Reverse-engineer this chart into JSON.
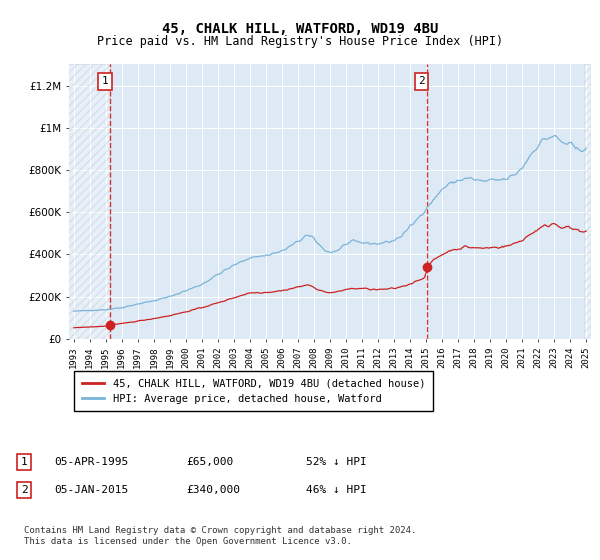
{
  "title": "45, CHALK HILL, WATFORD, WD19 4BU",
  "subtitle": "Price paid vs. HM Land Registry's House Price Index (HPI)",
  "ylim": [
    0,
    1300000
  ],
  "yticks": [
    0,
    200000,
    400000,
    600000,
    800000,
    1000000,
    1200000
  ],
  "hpi_color": "#7ab4d8",
  "price_color": "#cc2222",
  "marker_color": "#cc2222",
  "vline_color": "#cc2222",
  "bg_color": "#ddeaf5",
  "grid_color": "#ffffff",
  "box_edge_color": "#cc2222",
  "box_face_color": "#ffffff",
  "box_text_color": "#000000",
  "legend_label_price": "45, CHALK HILL, WATFORD, WD19 4BU (detached house)",
  "legend_label_hpi": "HPI: Average price, detached house, Watford",
  "note1_date": "05-APR-1995",
  "note1_price": "£65,000",
  "note1_hpi": "52% ↓ HPI",
  "note2_date": "05-JAN-2015",
  "note2_price": "£340,000",
  "note2_hpi": "46% ↓ HPI",
  "footer": "Contains HM Land Registry data © Crown copyright and database right 2024.\nThis data is licensed under the Open Government Licence v3.0.",
  "x_start_year": 1993,
  "x_end_year": 2025,
  "purchase1_year": 1995.25,
  "purchase1_price": 65000,
  "purchase2_year": 2015.03,
  "purchase2_price": 340000
}
